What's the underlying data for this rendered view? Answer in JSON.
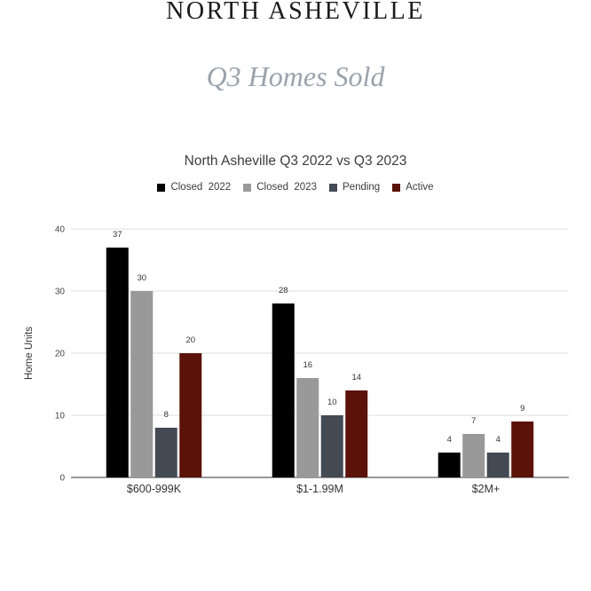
{
  "header": {
    "title": "NORTH ASHEVILLE",
    "subtitle": "Q3 Homes Sold"
  },
  "chart_data": {
    "type": "bar",
    "title": "North Asheville Q3 2022 vs Q3 2023",
    "xlabel": "",
    "ylabel": "Home Units",
    "ylim": [
      0,
      40
    ],
    "yticks": [
      0,
      10,
      20,
      30,
      40
    ],
    "grid": true,
    "legend_position": "top",
    "categories": [
      "$600-999K",
      "$1-1.99M",
      "$2M+"
    ],
    "series": [
      {
        "name": "Closed  2022",
        "color": "#000000",
        "values": [
          37,
          28,
          4
        ]
      },
      {
        "name": "Closed  2023",
        "color": "#999999",
        "values": [
          30,
          16,
          7
        ]
      },
      {
        "name": "Pending",
        "color": "#434a54",
        "values": [
          8,
          10,
          4
        ]
      },
      {
        "name": "Active",
        "color": "#5b1208",
        "values": [
          20,
          14,
          9
        ]
      }
    ]
  }
}
